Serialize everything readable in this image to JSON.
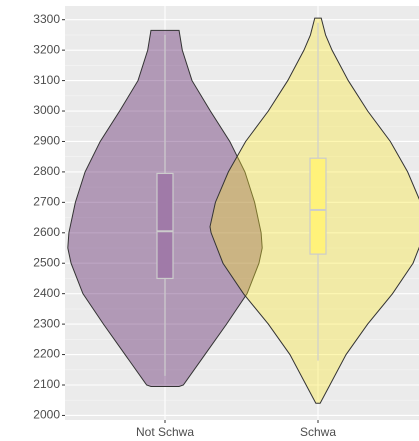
{
  "chart_data": {
    "type": "violin",
    "categories": [
      "Not Schwa",
      "Schwa"
    ],
    "series": [
      {
        "name": "Not Schwa",
        "color": "#440154",
        "box_color": "#a07aa8",
        "y": [
          3265,
          3200,
          3100,
          3000,
          2900,
          2800,
          2700,
          2600,
          2550,
          2500,
          2400,
          2300,
          2200,
          2100,
          2095
        ],
        "density": [
          0.13,
          0.16,
          0.25,
          0.42,
          0.6,
          0.74,
          0.83,
          0.89,
          0.9,
          0.87,
          0.76,
          0.57,
          0.37,
          0.17,
          0.13
        ],
        "whisker_low": 2130,
        "q1": 2450,
        "median": 2605,
        "q3": 2795,
        "whisker_high": 3250
      },
      {
        "name": "Schwa",
        "color": "#fde725",
        "box_color": "#fff27a",
        "y": [
          3305,
          3250,
          3200,
          3100,
          3000,
          2900,
          2800,
          2700,
          2620,
          2600,
          2500,
          2400,
          2300,
          2200,
          2100,
          2040
        ],
        "density": [
          0.03,
          0.07,
          0.13,
          0.28,
          0.46,
          0.67,
          0.83,
          0.95,
          1,
          0.99,
          0.88,
          0.69,
          0.46,
          0.26,
          0.11,
          0.02
        ],
        "whisker_low": 2180,
        "q1": 2530,
        "median": 2675,
        "q3": 2845,
        "whisker_high": 3290
      }
    ],
    "ylim": [
      1985,
      3345
    ],
    "yticks": [
      2000,
      2100,
      2200,
      2300,
      2400,
      2500,
      2600,
      2700,
      2800,
      2900,
      3000,
      3100,
      3200,
      3300
    ],
    "grid": true
  }
}
